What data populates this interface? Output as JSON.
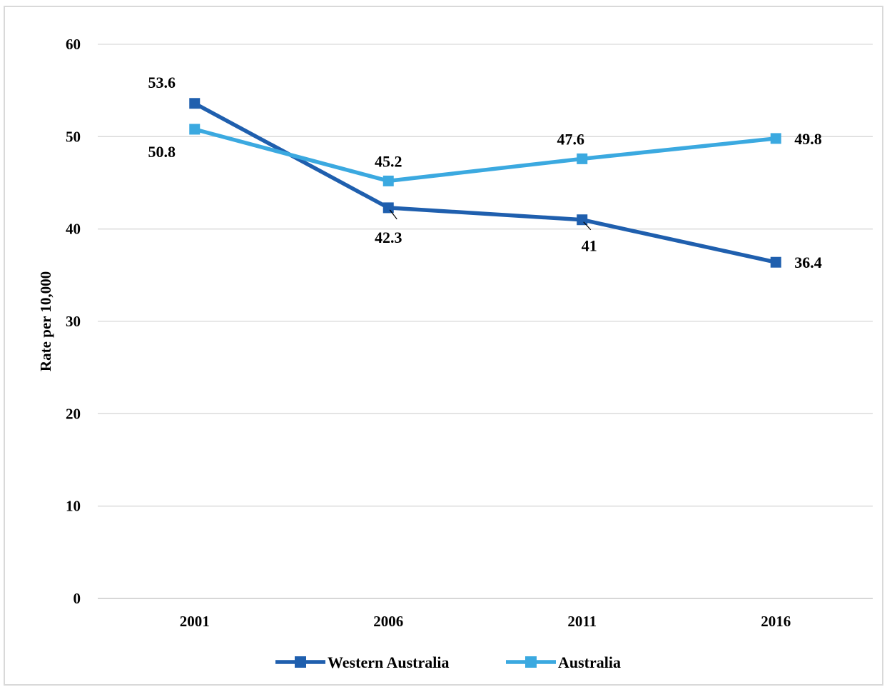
{
  "chart_data": {
    "type": "line",
    "title": "",
    "xlabel": "",
    "ylabel": "Rate per 10,000",
    "categories": [
      "2001",
      "2006",
      "2011",
      "2016"
    ],
    "ylim": [
      0,
      60
    ],
    "yticks": [
      "0",
      "10",
      "20",
      "30",
      "40",
      "50",
      "60"
    ],
    "grid": true,
    "legend_position": "bottom",
    "series": [
      {
        "name": "Western Australia",
        "color": "#1f5fae",
        "values": [
          53.6,
          42.3,
          41,
          36.4
        ],
        "labels": [
          "53.6",
          "42.3",
          "41",
          "36.4"
        ]
      },
      {
        "name": "Australia",
        "color": "#3ba9e0",
        "values": [
          50.8,
          45.2,
          47.6,
          49.8
        ],
        "labels": [
          "50.8",
          "45.2",
          "47.6",
          "49.8"
        ]
      }
    ]
  }
}
